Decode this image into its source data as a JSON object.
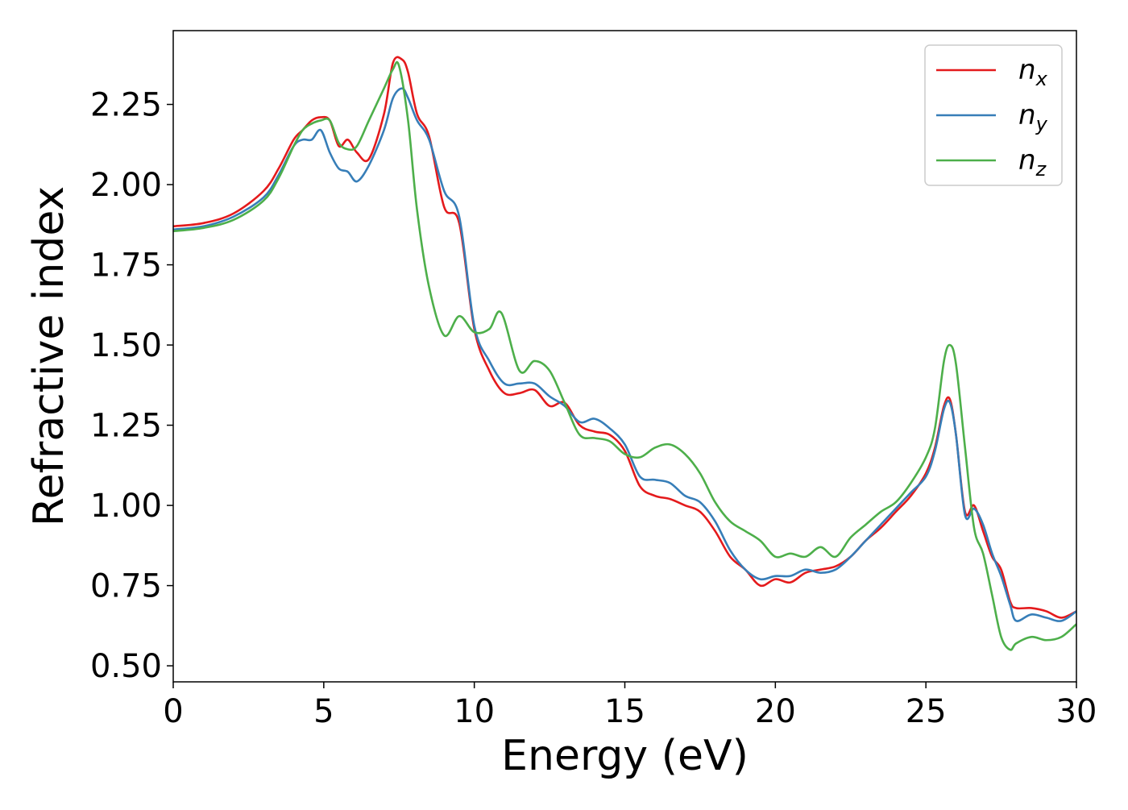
{
  "chart_data": {
    "type": "line",
    "title": "",
    "xlabel": "Energy (eV)",
    "ylabel": "Refractive index",
    "xlim": [
      0,
      30
    ],
    "ylim": [
      0.45,
      2.48
    ],
    "xticks": [
      0,
      5,
      10,
      15,
      20,
      25,
      30
    ],
    "xtick_labels": [
      "0",
      "5",
      "10",
      "15",
      "20",
      "25",
      "30"
    ],
    "yticks": [
      0.5,
      0.75,
      1.0,
      1.25,
      1.5,
      1.75,
      2.0,
      2.25
    ],
    "ytick_labels": [
      "0.50",
      "0.75",
      "1.00",
      "1.25",
      "1.50",
      "1.75",
      "2.00",
      "2.25"
    ],
    "grid": false,
    "legend_position": "top-right",
    "series": [
      {
        "name": "n_x",
        "label_base": "n",
        "label_sub": "x",
        "color": "#e41a1c",
        "x": [
          0,
          1,
          2,
          3,
          3.5,
          4,
          4.3,
          4.6,
          4.9,
          5.2,
          5.5,
          5.8,
          6.1,
          6.5,
          7.0,
          7.3,
          7.6,
          7.8,
          8.1,
          8.5,
          9.0,
          9.5,
          10.0,
          10.5,
          11.0,
          11.5,
          12.0,
          12.5,
          13.0,
          13.5,
          14.0,
          14.5,
          15.0,
          15.5,
          16.0,
          16.5,
          17.0,
          17.5,
          18.0,
          18.5,
          19.0,
          19.5,
          20.0,
          20.5,
          21.0,
          21.5,
          22.0,
          22.5,
          23.0,
          23.5,
          24.0,
          24.5,
          25.0,
          25.3,
          25.6,
          25.8,
          26.0,
          26.3,
          26.6,
          26.9,
          27.2,
          27.5,
          27.8,
          28.0,
          28.5,
          29.0,
          29.5,
          30.0
        ],
        "y": [
          1.87,
          1.88,
          1.91,
          1.98,
          2.05,
          2.14,
          2.17,
          2.2,
          2.21,
          2.2,
          2.12,
          2.14,
          2.1,
          2.08,
          2.22,
          2.38,
          2.39,
          2.35,
          2.22,
          2.15,
          1.93,
          1.88,
          1.55,
          1.42,
          1.35,
          1.35,
          1.36,
          1.31,
          1.32,
          1.25,
          1.23,
          1.22,
          1.17,
          1.06,
          1.03,
          1.02,
          1.0,
          0.98,
          0.92,
          0.84,
          0.8,
          0.75,
          0.77,
          0.76,
          0.79,
          0.8,
          0.81,
          0.84,
          0.89,
          0.93,
          0.98,
          1.03,
          1.1,
          1.18,
          1.31,
          1.33,
          1.22,
          0.98,
          1.0,
          0.92,
          0.84,
          0.8,
          0.7,
          0.68,
          0.68,
          0.67,
          0.65,
          0.67
        ]
      },
      {
        "name": "n_y",
        "label_base": "n",
        "label_sub": "y",
        "color": "#377eb8",
        "x": [
          0,
          1,
          2,
          3,
          3.5,
          4,
          4.3,
          4.6,
          4.9,
          5.2,
          5.5,
          5.8,
          6.1,
          6.5,
          7.0,
          7.3,
          7.6,
          7.8,
          8.1,
          8.5,
          9.0,
          9.5,
          10.0,
          10.5,
          11.0,
          11.5,
          12.0,
          12.5,
          13.0,
          13.5,
          14.0,
          14.5,
          15.0,
          15.5,
          16.0,
          16.5,
          17.0,
          17.5,
          18.0,
          18.5,
          19.0,
          19.5,
          20.0,
          20.5,
          21.0,
          21.5,
          22.0,
          22.5,
          23.0,
          23.5,
          24.0,
          24.5,
          25.0,
          25.3,
          25.6,
          25.8,
          26.0,
          26.3,
          26.6,
          26.9,
          27.2,
          27.5,
          27.8,
          28.0,
          28.5,
          29.0,
          29.5,
          30.0
        ],
        "y": [
          1.86,
          1.87,
          1.9,
          1.96,
          2.03,
          2.12,
          2.14,
          2.14,
          2.17,
          2.1,
          2.05,
          2.04,
          2.01,
          2.06,
          2.17,
          2.27,
          2.3,
          2.27,
          2.2,
          2.14,
          1.98,
          1.9,
          1.56,
          1.45,
          1.38,
          1.38,
          1.38,
          1.34,
          1.31,
          1.26,
          1.27,
          1.24,
          1.19,
          1.09,
          1.08,
          1.07,
          1.03,
          1.01,
          0.95,
          0.86,
          0.8,
          0.77,
          0.78,
          0.78,
          0.8,
          0.79,
          0.8,
          0.84,
          0.89,
          0.94,
          0.99,
          1.04,
          1.09,
          1.17,
          1.3,
          1.32,
          1.22,
          0.97,
          0.99,
          0.94,
          0.85,
          0.78,
          0.69,
          0.64,
          0.66,
          0.65,
          0.64,
          0.67
        ]
      },
      {
        "name": "n_z",
        "label_base": "n",
        "label_sub": "z",
        "color": "#4daf4a",
        "x": [
          0,
          1,
          2,
          3,
          3.5,
          4,
          4.3,
          4.6,
          4.9,
          5.2,
          5.5,
          5.8,
          6.1,
          6.5,
          7.0,
          7.3,
          7.5,
          7.8,
          8.1,
          8.5,
          9.0,
          9.5,
          10.0,
          10.5,
          10.9,
          11.5,
          12.0,
          12.5,
          13.0,
          13.5,
          14.0,
          14.5,
          15.0,
          15.5,
          16.0,
          16.5,
          17.0,
          17.5,
          18.0,
          18.5,
          19.0,
          19.5,
          20.0,
          20.5,
          21.0,
          21.5,
          22.0,
          22.5,
          23.0,
          23.5,
          24.0,
          24.5,
          25.0,
          25.3,
          25.6,
          25.8,
          26.0,
          26.3,
          26.6,
          26.9,
          27.2,
          27.5,
          27.8,
          28.0,
          28.5,
          29.0,
          29.5,
          30.0
        ],
        "y": [
          1.855,
          1.865,
          1.89,
          1.95,
          2.02,
          2.12,
          2.17,
          2.19,
          2.2,
          2.2,
          2.13,
          2.11,
          2.12,
          2.2,
          2.3,
          2.36,
          2.37,
          2.2,
          1.92,
          1.68,
          1.53,
          1.59,
          1.54,
          1.55,
          1.6,
          1.42,
          1.45,
          1.42,
          1.32,
          1.22,
          1.21,
          1.2,
          1.16,
          1.15,
          1.18,
          1.19,
          1.16,
          1.1,
          1.01,
          0.95,
          0.92,
          0.89,
          0.84,
          0.85,
          0.84,
          0.87,
          0.84,
          0.9,
          0.94,
          0.98,
          1.01,
          1.07,
          1.15,
          1.24,
          1.45,
          1.5,
          1.44,
          1.18,
          0.93,
          0.85,
          0.72,
          0.59,
          0.55,
          0.57,
          0.59,
          0.58,
          0.59,
          0.63
        ]
      }
    ]
  }
}
